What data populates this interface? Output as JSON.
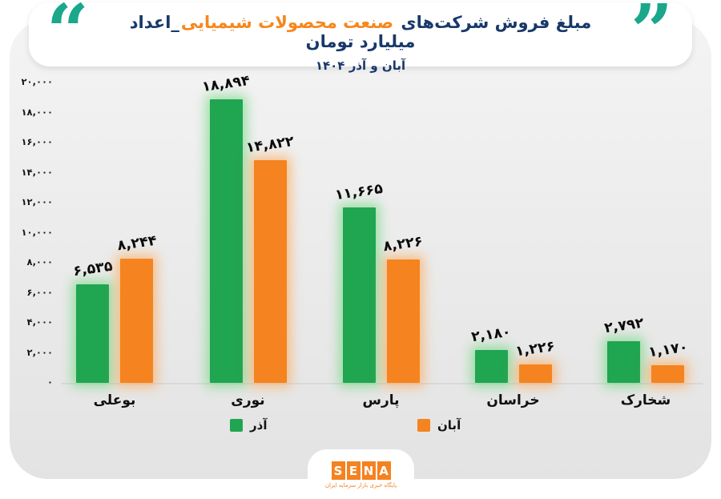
{
  "header": {
    "quote_color": "#1aa78c",
    "title": {
      "part1": "مبلغ فروش شرکت‌های",
      "part2": "صنعت محصولات شیمیایی",
      "part3": "_اعداد میلیارد تومان"
    },
    "subtitle": "آبان و آذر ۱۴۰۴"
  },
  "chart_data": {
    "type": "bar",
    "title": "مبلغ فروش شرکت‌های صنعت محصولات شیمیایی",
    "units_note": "اعداد میلیارد تومان",
    "period": "آبان و آذر ۱۴۰۴",
    "categories": [
      "بوعلی",
      "نوری",
      "پارس",
      "خراسان",
      "شخارک"
    ],
    "series": [
      {
        "name": "آذر",
        "color": "#20a551",
        "glow": "rgba(98,214,116,0.60)",
        "values": [
          6535,
          18894,
          11665,
          2180,
          2792
        ],
        "value_labels": [
          "۶,۵۳۵",
          "۱۸,۸۹۴",
          "۱۱,۶۶۵",
          "۲,۱۸۰",
          "۲,۷۹۲"
        ]
      },
      {
        "name": "آبان",
        "color": "#f5831f",
        "glow": "rgba(255,162,72,0.60)",
        "values": [
          8244,
          14822,
          8226,
          1226,
          1170
        ],
        "value_labels": [
          "۸,۲۴۴",
          "۱۴,۸۲۲",
          "۸,۲۲۶",
          "۱,۲۲۶",
          "۱,۱۷۰"
        ]
      }
    ],
    "ylim": [
      0,
      20000
    ],
    "grid": false,
    "legend_position": "bottom",
    "yticks": [
      {
        "value": 20000,
        "label": "۲۰,۰۰۰"
      },
      {
        "value": 18000,
        "label": "۱۸,۰۰۰"
      },
      {
        "value": 16000,
        "label": "۱۶,۰۰۰"
      },
      {
        "value": 14000,
        "label": "۱۴,۰۰۰"
      },
      {
        "value": 12000,
        "label": "۱۲,۰۰۰"
      },
      {
        "value": 10000,
        "label": "۱۰,۰۰۰"
      },
      {
        "value": 8000,
        "label": "۸,۰۰۰"
      },
      {
        "value": 6000,
        "label": "۶,۰۰۰"
      },
      {
        "value": 4000,
        "label": "۴,۰۰۰"
      },
      {
        "value": 2000,
        "label": "۲,۰۰۰"
      },
      {
        "value": 0,
        "label": "۰"
      }
    ]
  },
  "legend": {
    "items": [
      {
        "label": "آذر",
        "color": "#20a551"
      },
      {
        "label": "آبان",
        "color": "#f5831f"
      }
    ]
  },
  "footer": {
    "logo_letters": [
      "S",
      "E",
      "N",
      "A"
    ],
    "logo_color": "#f58220",
    "logo_subtext": "پایگاه خبری بازار سرمایه ایران"
  }
}
